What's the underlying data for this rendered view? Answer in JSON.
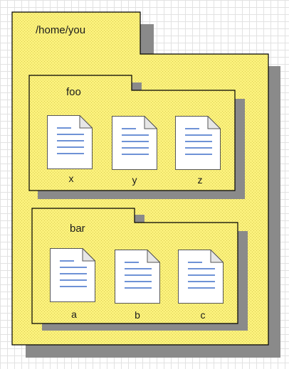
{
  "diagram": {
    "root": {
      "label": "/home/you",
      "children": [
        {
          "label": "foo",
          "files": [
            "x",
            "y",
            "z"
          ]
        },
        {
          "label": "bar",
          "files": [
            "a",
            "b",
            "c"
          ]
        }
      ]
    }
  },
  "icons": {
    "file": "document-icon",
    "folder": "folder-shape"
  },
  "colors": {
    "folder_fill": "#fbf17c",
    "folder_dots": "#d8cc52",
    "shadow": "#8a8a8a",
    "outline": "#000000",
    "doc_lines": "#3f6fc8",
    "grid": "#e2e2e2"
  }
}
